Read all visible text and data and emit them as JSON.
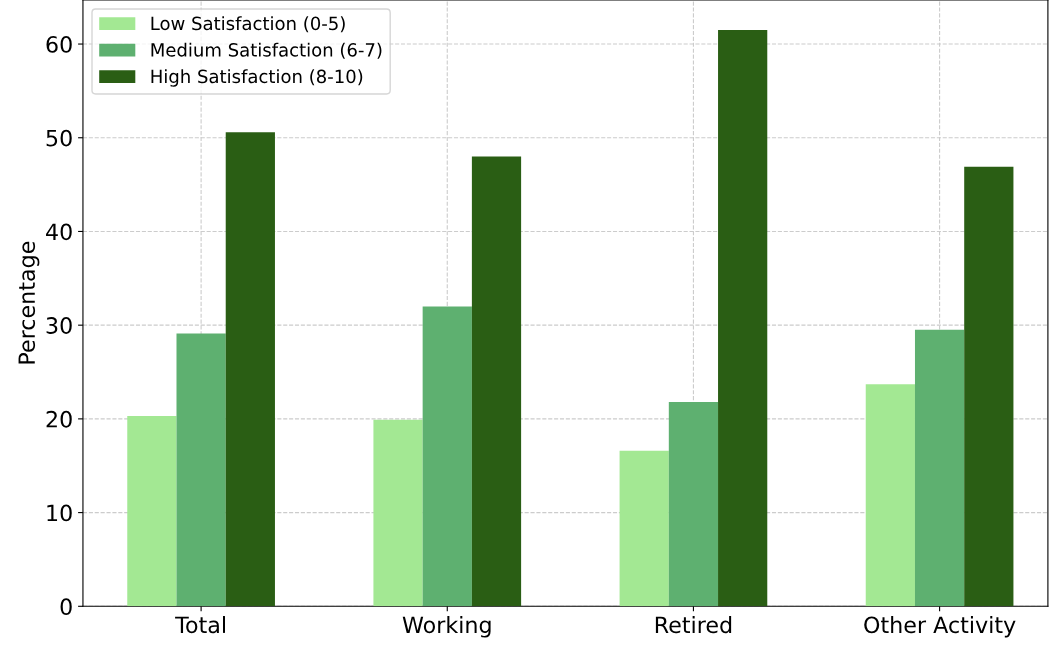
{
  "chart_data": {
    "type": "bar",
    "ylabel": "Percentage",
    "categories": [
      "Total",
      "Working",
      "Retired",
      "Other Activity"
    ],
    "series": [
      {
        "name": "Low Satisfaction (0-5)",
        "color": "#a3e893",
        "values": [
          20.3,
          19.9,
          16.6,
          23.7
        ]
      },
      {
        "name": "Medium Satisfaction (6-7)",
        "color": "#5eb070",
        "values": [
          29.1,
          32.0,
          21.8,
          29.5
        ]
      },
      {
        "name": "High Satisfaction (8-10)",
        "color": "#2a5e14",
        "values": [
          50.6,
          48.0,
          61.5,
          46.9
        ]
      }
    ],
    "ylim": [
      0,
      64.7
    ],
    "yticks": [
      0,
      10,
      20,
      30,
      40,
      50,
      60
    ],
    "grid": true,
    "legend": "top left"
  }
}
